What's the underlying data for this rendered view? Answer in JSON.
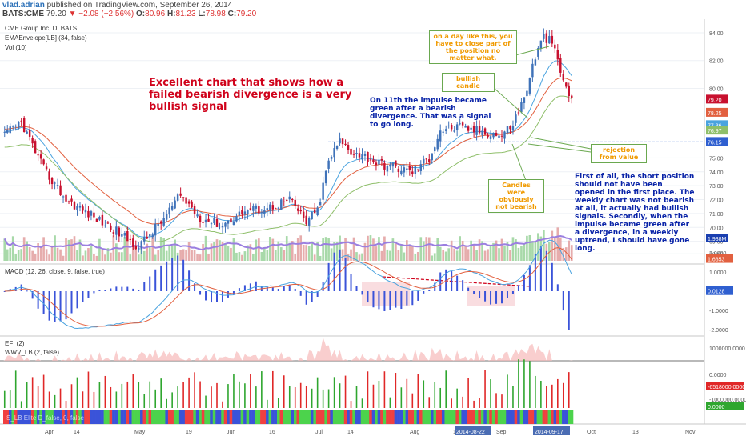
{
  "header": {
    "author": "vlad.adrian",
    "published": "published on TradingView.com, September 26, 2014",
    "symbol": "BATS:CME",
    "last": "79.20",
    "change": "▼ −2.08 (−2.56%)",
    "o": "80.96",
    "h": "81.23",
    "l": "78.98",
    "c": "79.20"
  },
  "legend": {
    "main_title": "CME Group Inc, D, BATS",
    "env": "EMAEnvelope[LB] (34, false)",
    "vol": "Vol (10)",
    "macd": "MACD (12, 26, close, 9, false, true)",
    "efi": "EFI (2)",
    "wwv": "WWV_LB (2, false)",
    "bottom": "S_LB Elite D_false, 0, false"
  },
  "annotations": {
    "title": "Excellent chart that shows how a failed bearish divergence is a very bullish signal",
    "impulse": "On 11th the impulse became green after a bearish divergence. That was a signal to go long.",
    "first": "First of all, the short position should not have been opened in the first place. The weekly chart was not bearish at all, it actually had bullish signals. Secondly, when the impulse became green after a divergence, in a weekly uptrend, I should have gone long.",
    "day": "on a day like this, you have to close part of the position no matter what.",
    "bullish": "bullish candle",
    "rejection": "rejection from value",
    "candles": "Candles were obviously not bearish"
  },
  "colors": {
    "up": "#3f72b9",
    "down": "#c8102e",
    "ema_fast": "#4aa3df",
    "ema_slow": "#e2603f",
    "envelope": "#8fbf6a",
    "vol_up": "#9fd5a0",
    "vol_down": "#e3a3a3",
    "vol_ma": "#9b7fe0",
    "hline": "#2f5fd0",
    "bar_green": "#4cd34c",
    "bar_red": "#f04040",
    "bar_blue": "#3a53d9"
  },
  "chart_data": [
    {
      "type": "candlestick",
      "ylim": [
        67.6,
        84.4
      ],
      "y_ticks": [
        "84.00",
        "82.00",
        "80.00",
        "75.00",
        "74.00",
        "73.00",
        "72.00",
        "71.00",
        "70.00",
        "69.00",
        "68.10"
      ],
      "x_labels": [
        "Apr",
        "14",
        "May",
        "19",
        "Jun",
        "16",
        "Jul",
        "14",
        "Aug",
        "18",
        "2014-08-22",
        "Sep",
        "2014-09-17",
        "Oct",
        "13",
        "Nov"
      ],
      "price_tags": [
        "79.20",
        "78.25",
        "77.36",
        "76.97",
        "76.15",
        "1.938M"
      ],
      "hline_value": 76.15,
      "ohlc_anchor_points": [
        [
          0,
          76.6
        ],
        [
          6,
          77.6
        ],
        [
          14,
          74.2
        ],
        [
          22,
          72.0
        ],
        [
          30,
          71.0
        ],
        [
          38,
          70.0
        ],
        [
          48,
          68.6
        ],
        [
          56,
          70.4
        ],
        [
          63,
          72.3
        ],
        [
          70,
          70.7
        ],
        [
          78,
          70.2
        ],
        [
          86,
          71.2
        ],
        [
          94,
          71.4
        ],
        [
          102,
          72.0
        ],
        [
          108,
          70.4
        ],
        [
          112,
          71.2
        ],
        [
          116,
          74.8
        ],
        [
          120,
          76.2
        ],
        [
          124,
          75.5
        ],
        [
          128,
          75.2
        ],
        [
          134,
          74.6
        ],
        [
          140,
          74.3
        ],
        [
          146,
          74.0
        ],
        [
          152,
          75.0
        ],
        [
          156,
          77.0
        ],
        [
          162,
          77.2
        ],
        [
          168,
          77.0
        ],
        [
          174,
          76.8
        ],
        [
          178,
          76.6
        ],
        [
          182,
          77.5
        ],
        [
          186,
          79.3
        ],
        [
          190,
          82.3
        ],
        [
          193,
          83.7
        ],
        [
          196,
          83.3
        ],
        [
          200,
          80.5
        ],
        [
          203,
          79.2
        ]
      ],
      "candle_count": 204
    },
    {
      "type": "bar",
      "name": "MACD",
      "ylim": [
        -2.3,
        2.2
      ],
      "y_ticks": [
        "2.0000",
        "1.0000",
        "-1.0000",
        "-2.0000"
      ],
      "price_tags": [
        "1.6853",
        "0.0128"
      ]
    },
    {
      "type": "bar",
      "name": "EFI",
      "y_ticks": [
        "1000000.0000",
        "0.0000",
        "-1000000.0000"
      ],
      "price_tags": [
        "-6518000.0000",
        "0.0000"
      ]
    }
  ]
}
